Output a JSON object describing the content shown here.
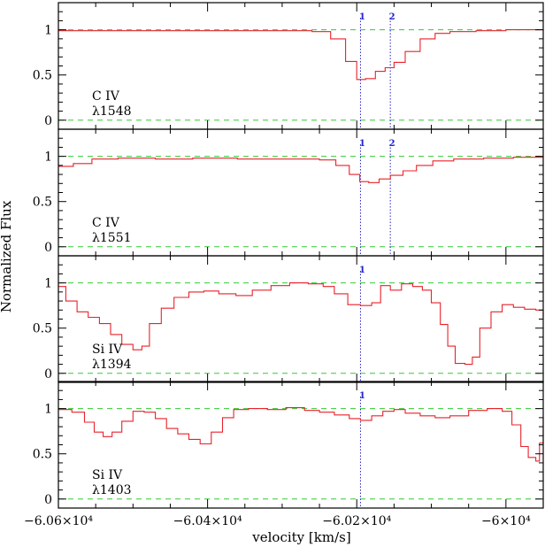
{
  "chart_data": {
    "type": "line",
    "xlabel": "velocity [km/s]",
    "ylabel": "Normalized Flux",
    "xlim": [
      -60600,
      -59950
    ],
    "ylim": [
      -0.1,
      1.3
    ],
    "x_ticks": [
      {
        "value": -60600,
        "label": "−6.06×10⁴"
      },
      {
        "value": -60400,
        "label": "−6.04×10⁴"
      },
      {
        "value": -60200,
        "label": "−6.02×10⁴"
      },
      {
        "value": -60000,
        "label": "−6×10⁴"
      }
    ],
    "y_ticks": [
      {
        "value": 0,
        "label": "0"
      },
      {
        "value": 0.5,
        "label": "0.5"
      },
      {
        "value": 1,
        "label": "1"
      }
    ],
    "reference_levels": [
      0,
      1
    ],
    "grid": false,
    "panels": [
      {
        "ion": "C IV",
        "wavelength": "λ1548",
        "components": [
          {
            "label": "1",
            "velocity": -60195
          },
          {
            "label": "2",
            "velocity": -60155
          }
        ],
        "flux": [
          [
            -60600,
            0.99
          ],
          [
            -60510,
            0.99
          ],
          [
            -60420,
            0.99
          ],
          [
            -60330,
            0.99
          ],
          [
            -60260,
            0.98
          ],
          [
            -60235,
            0.9
          ],
          [
            -60215,
            0.65
          ],
          [
            -60200,
            0.45
          ],
          [
            -60188,
            0.46
          ],
          [
            -60175,
            0.54
          ],
          [
            -60162,
            0.58
          ],
          [
            -60150,
            0.64
          ],
          [
            -60135,
            0.76
          ],
          [
            -60115,
            0.9
          ],
          [
            -60095,
            0.96
          ],
          [
            -60075,
            0.98
          ],
          [
            -60040,
            0.99
          ],
          [
            -60000,
            1.0
          ],
          [
            -59950,
            0.99
          ]
        ]
      },
      {
        "ion": "C IV",
        "wavelength": "λ1551",
        "components": [
          {
            "label": "1",
            "velocity": -60195
          },
          {
            "label": "2",
            "velocity": -60155
          }
        ],
        "flux": [
          [
            -60600,
            0.89
          ],
          [
            -60580,
            0.92
          ],
          [
            -60555,
            0.97
          ],
          [
            -60520,
            0.98
          ],
          [
            -60470,
            0.97
          ],
          [
            -60420,
            0.98
          ],
          [
            -60360,
            0.97
          ],
          [
            -60300,
            0.97
          ],
          [
            -60250,
            0.96
          ],
          [
            -60228,
            0.9
          ],
          [
            -60210,
            0.8
          ],
          [
            -60196,
            0.72
          ],
          [
            -60184,
            0.71
          ],
          [
            -60170,
            0.75
          ],
          [
            -60155,
            0.79
          ],
          [
            -60138,
            0.84
          ],
          [
            -60120,
            0.9
          ],
          [
            -60098,
            0.95
          ],
          [
            -60070,
            0.97
          ],
          [
            -60030,
            0.98
          ],
          [
            -59990,
            0.99
          ],
          [
            -59950,
            0.99
          ]
        ]
      },
      {
        "ion": "Si IV",
        "wavelength": "λ1394",
        "components": [
          {
            "label": "1",
            "velocity": -60195
          }
        ],
        "flux": [
          [
            -60600,
            0.96
          ],
          [
            -60590,
            0.8
          ],
          [
            -60575,
            0.68
          ],
          [
            -60560,
            0.62
          ],
          [
            -60545,
            0.55
          ],
          [
            -60530,
            0.43
          ],
          [
            -60515,
            0.32
          ],
          [
            -60500,
            0.26
          ],
          [
            -60488,
            0.3
          ],
          [
            -60478,
            0.55
          ],
          [
            -60462,
            0.72
          ],
          [
            -60445,
            0.84
          ],
          [
            -60425,
            0.9
          ],
          [
            -60405,
            0.91
          ],
          [
            -60385,
            0.88
          ],
          [
            -60362,
            0.86
          ],
          [
            -60340,
            0.92
          ],
          [
            -60315,
            0.97
          ],
          [
            -60290,
            1.0
          ],
          [
            -60265,
            0.99
          ],
          [
            -60245,
            0.96
          ],
          [
            -60230,
            0.88
          ],
          [
            -60212,
            0.76
          ],
          [
            -60195,
            0.75
          ],
          [
            -60180,
            0.78
          ],
          [
            -60168,
            0.97
          ],
          [
            -60155,
            0.92
          ],
          [
            -60140,
            0.99
          ],
          [
            -60125,
            0.96
          ],
          [
            -60112,
            0.92
          ],
          [
            -60100,
            0.78
          ],
          [
            -60088,
            0.54
          ],
          [
            -60078,
            0.3
          ],
          [
            -60068,
            0.11
          ],
          [
            -60055,
            0.1
          ],
          [
            -60045,
            0.18
          ],
          [
            -60035,
            0.5
          ],
          [
            -60020,
            0.68
          ],
          [
            -60005,
            0.76
          ],
          [
            -59990,
            0.73
          ],
          [
            -59975,
            0.71
          ],
          [
            -59960,
            0.7
          ],
          [
            -59950,
            0.62
          ]
        ]
      },
      {
        "ion": "Si IV",
        "wavelength": "λ1403",
        "components": [
          {
            "label": "1",
            "velocity": -60195
          }
        ],
        "flux": [
          [
            -60600,
            0.99
          ],
          [
            -60582,
            0.96
          ],
          [
            -60565,
            0.85
          ],
          [
            -60552,
            0.74
          ],
          [
            -60540,
            0.69
          ],
          [
            -60528,
            0.74
          ],
          [
            -60515,
            0.86
          ],
          [
            -60500,
            0.97
          ],
          [
            -60485,
            0.96
          ],
          [
            -60470,
            0.89
          ],
          [
            -60455,
            0.78
          ],
          [
            -60440,
            0.72
          ],
          [
            -60425,
            0.66
          ],
          [
            -60410,
            0.61
          ],
          [
            -60395,
            0.74
          ],
          [
            -60380,
            0.9
          ],
          [
            -60365,
            0.99
          ],
          [
            -60345,
            1.0
          ],
          [
            -60320,
            0.99
          ],
          [
            -60295,
            1.01
          ],
          [
            -60270,
            0.98
          ],
          [
            -60250,
            0.96
          ],
          [
            -60230,
            0.93
          ],
          [
            -60210,
            0.89
          ],
          [
            -60195,
            0.87
          ],
          [
            -60180,
            0.92
          ],
          [
            -60165,
            0.97
          ],
          [
            -60150,
            0.99
          ],
          [
            -60135,
            0.95
          ],
          [
            -60115,
            0.92
          ],
          [
            -60095,
            0.9
          ],
          [
            -60075,
            0.92
          ],
          [
            -60050,
            0.98
          ],
          [
            -60025,
            1.0
          ],
          [
            -60005,
            0.97
          ],
          [
            -59992,
            0.82
          ],
          [
            -59980,
            0.58
          ],
          [
            -59970,
            0.46
          ],
          [
            -59960,
            0.42
          ],
          [
            -59955,
            0.62
          ],
          [
            -59950,
            0.9
          ]
        ]
      }
    ]
  }
}
